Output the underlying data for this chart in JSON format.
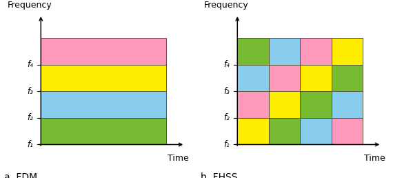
{
  "colors": {
    "pink": "#FF99BB",
    "yellow": "#FFEE00",
    "cyan": "#88CCEE",
    "green": "#77BB33"
  },
  "fdm": {
    "title": "a. FDM",
    "freq_labels": [
      "f₁",
      "f₂",
      "f₃",
      "f₄"
    ],
    "row_colors": [
      "#77BB33",
      "#88CCEE",
      "#FFEE00",
      "#FF99BB"
    ]
  },
  "fhss": {
    "title": "b. FHSS",
    "freq_labels": [
      "f₁",
      "f₂",
      "f₃",
      "f₄"
    ],
    "grid": [
      [
        "#FFEE00",
        "#77BB33",
        "#88CCEE",
        "#FF99BB"
      ],
      [
        "#FF99BB",
        "#FFEE00",
        "#77BB33",
        "#88CCEE"
      ],
      [
        "#88CCEE",
        "#FF99BB",
        "#FFEE00",
        "#77BB33"
      ],
      [
        "#77BB33",
        "#88CCEE",
        "#FF99BB",
        "#FFEE00"
      ]
    ]
  },
  "axis_label_freq": "Frequency",
  "axis_label_time": "Time",
  "background": "#FFFFFF",
  "edge_color": "#555533",
  "font_size_title": 10,
  "font_size_label": 9,
  "font_size_tick": 8.5
}
